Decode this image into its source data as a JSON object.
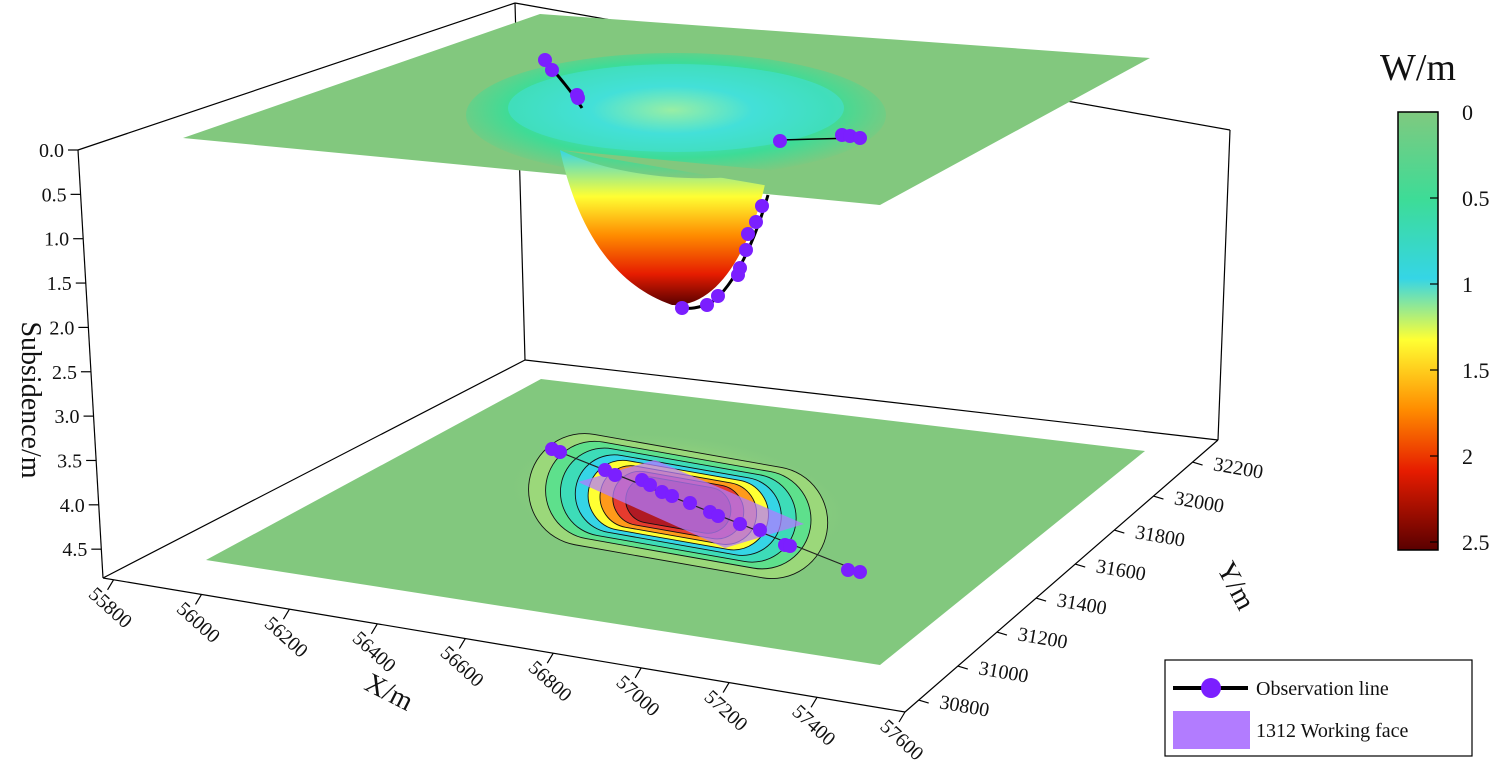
{
  "chart_data": {
    "type": "3d-surface",
    "zlabel": "Subsidence/m",
    "xlabel": "X/m",
    "ylabel": "Y/m",
    "z_ticks": [
      "0.0",
      "0.5",
      "1.0",
      "1.5",
      "2.0",
      "2.5",
      "3.0",
      "3.5",
      "4.0",
      "4.5"
    ],
    "x_ticks": [
      "55800",
      "56000",
      "56200",
      "56400",
      "56600",
      "56800",
      "57000",
      "57200",
      "57400",
      "57600"
    ],
    "y_ticks": [
      "30800",
      "31000",
      "31200",
      "31400",
      "31600",
      "31800",
      "32000",
      "32200"
    ],
    "colorbar": {
      "title": "W/m",
      "ticks": [
        "0",
        "0.5",
        "1",
        "1.5",
        "2",
        "2.5"
      ],
      "colors": [
        "#7fc97f",
        "#3ddc97",
        "#35d5e6",
        "#ffff33",
        "#ff8c00",
        "#e61c00",
        "#5a0000"
      ]
    },
    "max_subsidence": 2.5,
    "legend": [
      {
        "label": "Observation line",
        "color": "#7b1fff"
      },
      {
        "label": "1312 Working face",
        "color": "#b27cff"
      }
    ]
  }
}
